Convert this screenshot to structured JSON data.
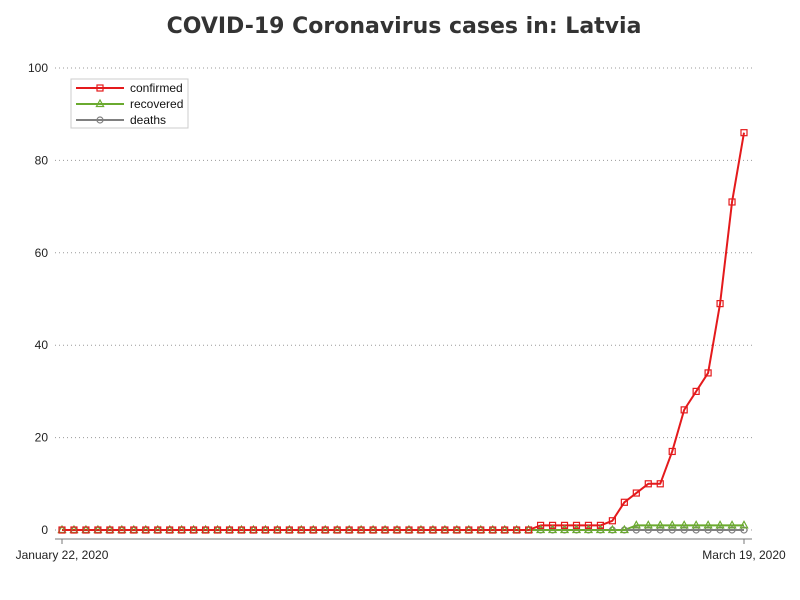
{
  "chart_data": {
    "type": "line",
    "title": "COVID-19 Coronavirus cases in: Latvia",
    "xlabel": "",
    "ylabel": "",
    "ylim": [
      0,
      100
    ],
    "yticks": [
      "0",
      "20",
      "40",
      "60",
      "80",
      "100"
    ],
    "xticks": [
      "January 22, 2020",
      "March 19, 2020"
    ],
    "grid": "horizontal dotted",
    "legend_position": "top-left",
    "x_start": "2020-01-22",
    "x_end": "2020-03-19",
    "series": [
      {
        "name": "confirmed",
        "color": "#e41a1c",
        "marker": "square",
        "values": [
          0,
          0,
          0,
          0,
          0,
          0,
          0,
          0,
          0,
          0,
          0,
          0,
          0,
          0,
          0,
          0,
          0,
          0,
          0,
          0,
          0,
          0,
          0,
          0,
          0,
          0,
          0,
          0,
          0,
          0,
          0,
          0,
          0,
          0,
          0,
          0,
          0,
          0,
          0,
          0,
          1,
          1,
          1,
          1,
          1,
          1,
          2,
          6,
          8,
          10,
          10,
          17,
          26,
          30,
          34,
          49,
          71,
          86
        ]
      },
      {
        "name": "recovered",
        "color": "#6aaa2f",
        "marker": "triangle",
        "values": [
          0,
          0,
          0,
          0,
          0,
          0,
          0,
          0,
          0,
          0,
          0,
          0,
          0,
          0,
          0,
          0,
          0,
          0,
          0,
          0,
          0,
          0,
          0,
          0,
          0,
          0,
          0,
          0,
          0,
          0,
          0,
          0,
          0,
          0,
          0,
          0,
          0,
          0,
          0,
          0,
          0,
          0,
          0,
          0,
          0,
          0,
          0,
          0,
          1,
          1,
          1,
          1,
          1,
          1,
          1,
          1,
          1,
          1
        ]
      },
      {
        "name": "deaths",
        "color": "#808080",
        "marker": "circle",
        "values": [
          0,
          0,
          0,
          0,
          0,
          0,
          0,
          0,
          0,
          0,
          0,
          0,
          0,
          0,
          0,
          0,
          0,
          0,
          0,
          0,
          0,
          0,
          0,
          0,
          0,
          0,
          0,
          0,
          0,
          0,
          0,
          0,
          0,
          0,
          0,
          0,
          0,
          0,
          0,
          0,
          0,
          0,
          0,
          0,
          0,
          0,
          0,
          0,
          0,
          0,
          0,
          0,
          0,
          0,
          0,
          0,
          0,
          0
        ]
      }
    ]
  }
}
